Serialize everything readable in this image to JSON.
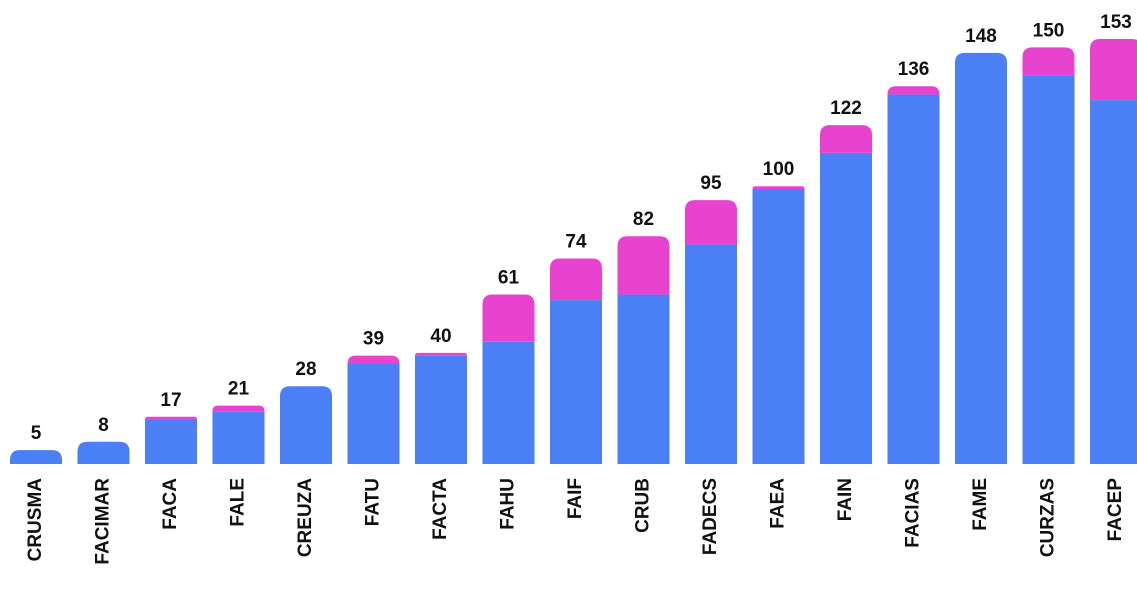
{
  "chart_data": {
    "type": "stacked_bar",
    "categories": [
      "CRUSMA",
      "FACIMAR",
      "FACA",
      "FALE",
      "CREUZA",
      "FATU",
      "FACTA",
      "FAHU",
      "FAIF",
      "CRUB",
      "FADECS",
      "FAEA",
      "FAIN",
      "FACIAS",
      "FAME",
      "CURZAS",
      "FACEP"
    ],
    "series": [
      {
        "color": "#4a7ff6",
        "values": [
          5,
          8,
          16,
          19,
          28,
          36,
          39,
          44,
          59,
          61,
          79,
          99,
          112,
          133,
          148,
          140,
          131
        ]
      },
      {
        "color": "#e843cf",
        "values": [
          0,
          0,
          1,
          2,
          0,
          3,
          1,
          17,
          15,
          21,
          16,
          1,
          10,
          3,
          0,
          10,
          22
        ]
      }
    ],
    "totals": [
      5,
      8,
      17,
      21,
      28,
      39,
      40,
      61,
      74,
      82,
      95,
      100,
      122,
      136,
      148,
      150,
      153
    ]
  }
}
